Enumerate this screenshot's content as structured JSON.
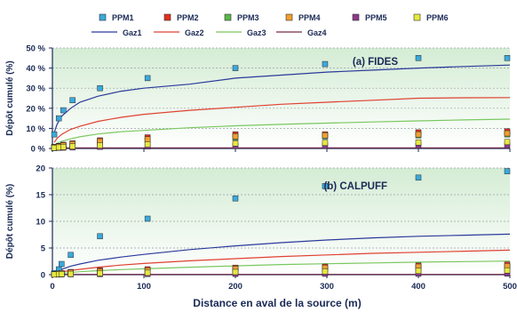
{
  "legend": {
    "markers": [
      {
        "label": "PPM1",
        "color": "#3aa9dc"
      },
      {
        "label": "PPM2",
        "color": "#e0301e"
      },
      {
        "label": "PPM3",
        "color": "#58b848"
      },
      {
        "label": "PPM4",
        "color": "#f0a030"
      },
      {
        "label": "PPM5",
        "color": "#8a3a8a"
      },
      {
        "label": "PPM6",
        "color": "#e8e840"
      }
    ],
    "lines": [
      {
        "label": "Gaz1",
        "color": "#2a3a9a"
      },
      {
        "label": "Gaz2",
        "color": "#e04030"
      },
      {
        "label": "Gaz3",
        "color": "#7ac860"
      },
      {
        "label": "Gaz4",
        "color": "#7a2a4a"
      }
    ]
  },
  "colors": {
    "plot_bg_top": "#d4ecd4",
    "plot_bg_bottom": "#ffffff",
    "axis": "#1a2a55"
  },
  "xlabel": "Distance en aval de la source (m)",
  "chart_data": [
    {
      "type": "scatter",
      "title": "(a) FIDES",
      "ylabel": "Dépôt cumulé (%)",
      "xlim": [
        0,
        500
      ],
      "ylim": [
        0,
        50
      ],
      "yticks": [
        "0 %",
        "10 %",
        "20 %",
        "30 %",
        "40 %",
        "50 %"
      ],
      "ytick_values": [
        0,
        10,
        20,
        30,
        40,
        50
      ],
      "xticks": [],
      "grid": true,
      "scatter_series": [
        {
          "name": "PPM1",
          "points": [
            [
              2,
              7
            ],
            [
              7,
              15
            ],
            [
              12,
              19
            ],
            [
              22,
              24
            ],
            [
              52,
              30
            ],
            [
              104,
              35
            ],
            [
              200,
              40
            ],
            [
              298,
              42
            ],
            [
              400,
              45
            ],
            [
              500,
              45
            ]
          ]
        },
        {
          "name": "PPM2",
          "points": [
            [
              2,
              0.8
            ],
            [
              7,
              1.2
            ],
            [
              12,
              1.8
            ],
            [
              22,
              2.5
            ],
            [
              52,
              4
            ],
            [
              104,
              5.5
            ],
            [
              200,
              7
            ],
            [
              298,
              7
            ],
            [
              400,
              8
            ],
            [
              500,
              8.5
            ]
          ]
        },
        {
          "name": "PPM3",
          "points": [
            [
              2,
              0.5
            ],
            [
              7,
              0.8
            ],
            [
              12,
              1.2
            ],
            [
              22,
              1.8
            ],
            [
              52,
              3
            ],
            [
              104,
              4
            ],
            [
              200,
              5.5
            ],
            [
              298,
              6
            ],
            [
              400,
              6.5
            ],
            [
              500,
              7
            ]
          ]
        },
        {
          "name": "PPM4",
          "points": [
            [
              2,
              0.6
            ],
            [
              7,
              1
            ],
            [
              12,
              1.5
            ],
            [
              22,
              2.2
            ],
            [
              52,
              3.5
            ],
            [
              104,
              4.5
            ],
            [
              200,
              6
            ],
            [
              298,
              6.5
            ],
            [
              400,
              7
            ],
            [
              500,
              7.5
            ]
          ]
        },
        {
          "name": "PPM5",
          "points": [
            [
              2,
              0.2
            ],
            [
              7,
              0.3
            ],
            [
              12,
              0.4
            ],
            [
              22,
              0.5
            ],
            [
              52,
              0.8
            ],
            [
              104,
              1
            ],
            [
              200,
              1.2
            ],
            [
              298,
              1.3
            ],
            [
              400,
              1.4
            ],
            [
              500,
              1.5
            ]
          ]
        },
        {
          "name": "PPM6",
          "points": [
            [
              2,
              0.3
            ],
            [
              7,
              0.5
            ],
            [
              12,
              0.7
            ],
            [
              22,
              1
            ],
            [
              52,
              1.5
            ],
            [
              104,
              2
            ],
            [
              200,
              2.5
            ],
            [
              298,
              2.8
            ],
            [
              400,
              3
            ],
            [
              500,
              3.2
            ]
          ]
        }
      ],
      "line_series": [
        {
          "name": "Gaz1",
          "x": [
            2,
            5,
            10,
            20,
            30,
            50,
            75,
            100,
            150,
            200,
            250,
            300,
            350,
            400,
            450,
            500
          ],
          "y": [
            8,
            12,
            16,
            20,
            23,
            26,
            28.5,
            30,
            32,
            35,
            36.5,
            38,
            39,
            40,
            40.8,
            41.5
          ]
        },
        {
          "name": "Gaz2",
          "x": [
            2,
            5,
            10,
            20,
            30,
            50,
            75,
            100,
            150,
            200,
            250,
            300,
            350,
            400,
            450,
            500
          ],
          "y": [
            3,
            5,
            7,
            9.5,
            11,
            13.5,
            15.5,
            17,
            19,
            20.5,
            22,
            23,
            24,
            25,
            25.2,
            25.3
          ]
        },
        {
          "name": "Gaz3",
          "x": [
            2,
            5,
            10,
            20,
            30,
            50,
            75,
            100,
            150,
            200,
            250,
            300,
            350,
            400,
            450,
            500
          ],
          "y": [
            1.5,
            2.5,
            3.5,
            4.8,
            5.8,
            7.2,
            8.3,
            9,
            10.3,
            11.3,
            12,
            12.6,
            13.2,
            13.7,
            14.2,
            14.6
          ]
        },
        {
          "name": "Gaz4",
          "x": [
            0,
            500
          ],
          "y": [
            0.3,
            0.3
          ]
        }
      ]
    },
    {
      "type": "scatter",
      "title": "(b) CALPUFF",
      "ylabel": "Dépôt cumulé (%)",
      "xlim": [
        0,
        500
      ],
      "ylim": [
        0,
        20
      ],
      "yticks": [
        "0",
        "5",
        "10",
        "15",
        "20"
      ],
      "ytick_values": [
        0,
        5,
        10,
        15,
        20
      ],
      "xticks": [
        "0",
        "100",
        "200",
        "300",
        "400",
        "500"
      ],
      "xtick_values": [
        0,
        100,
        200,
        300,
        400,
        500
      ],
      "grid": true,
      "scatter_series": [
        {
          "name": "PPM1",
          "points": [
            [
              2,
              0.3
            ],
            [
              7,
              1
            ],
            [
              10,
              2
            ],
            [
              20,
              3.7
            ],
            [
              52,
              7.2
            ],
            [
              104,
              10.5
            ],
            [
              200,
              14.3
            ],
            [
              298,
              16.6
            ],
            [
              400,
              18.2
            ],
            [
              500,
              19.4
            ]
          ]
        },
        {
          "name": "PPM2",
          "points": [
            [
              2,
              0.1
            ],
            [
              7,
              0.2
            ],
            [
              10,
              0.3
            ],
            [
              20,
              0.5
            ],
            [
              52,
              0.8
            ],
            [
              104,
              1
            ],
            [
              200,
              1.3
            ],
            [
              298,
              1.5
            ],
            [
              400,
              1.7
            ],
            [
              500,
              1.9
            ]
          ]
        },
        {
          "name": "PPM3",
          "points": [
            [
              2,
              0.05
            ],
            [
              7,
              0.1
            ],
            [
              10,
              0.2
            ],
            [
              20,
              0.3
            ],
            [
              52,
              0.5
            ],
            [
              104,
              0.7
            ],
            [
              200,
              0.9
            ],
            [
              298,
              1.1
            ],
            [
              400,
              1.3
            ],
            [
              500,
              1.4
            ]
          ]
        },
        {
          "name": "PPM4",
          "points": [
            [
              2,
              0.08
            ],
            [
              7,
              0.15
            ],
            [
              10,
              0.25
            ],
            [
              20,
              0.4
            ],
            [
              52,
              0.6
            ],
            [
              104,
              0.8
            ],
            [
              200,
              1.1
            ],
            [
              298,
              1.3
            ],
            [
              400,
              1.5
            ],
            [
              500,
              1.6
            ]
          ]
        },
        {
          "name": "PPM5",
          "points": [
            [
              2,
              0.02
            ],
            [
              7,
              0.03
            ],
            [
              10,
              0.05
            ],
            [
              20,
              0.08
            ],
            [
              52,
              0.1
            ],
            [
              104,
              0.12
            ],
            [
              200,
              0.15
            ],
            [
              298,
              0.17
            ],
            [
              400,
              0.18
            ],
            [
              500,
              0.2
            ]
          ]
        },
        {
          "name": "PPM6",
          "points": [
            [
              2,
              0.04
            ],
            [
              7,
              0.08
            ],
            [
              10,
              0.1
            ],
            [
              20,
              0.15
            ],
            [
              52,
              0.25
            ],
            [
              104,
              0.35
            ],
            [
              200,
              0.5
            ],
            [
              298,
              0.6
            ],
            [
              400,
              0.7
            ],
            [
              500,
              0.8
            ]
          ]
        }
      ],
      "line_series": [
        {
          "name": "Gaz1",
          "x": [
            0,
            5,
            10,
            20,
            30,
            50,
            75,
            100,
            150,
            200,
            250,
            300,
            350,
            400,
            450,
            500
          ],
          "y": [
            0.2,
            0.6,
            1,
            1.6,
            2,
            2.7,
            3.3,
            3.8,
            4.7,
            5.4,
            6,
            6.5,
            6.9,
            7.2,
            7.4,
            7.6
          ]
        },
        {
          "name": "Gaz2",
          "x": [
            0,
            5,
            10,
            20,
            30,
            50,
            75,
            100,
            150,
            200,
            250,
            300,
            350,
            400,
            450,
            500
          ],
          "y": [
            0.1,
            0.3,
            0.5,
            0.8,
            1,
            1.4,
            1.8,
            2.1,
            2.6,
            3,
            3.4,
            3.7,
            4,
            4.2,
            4.4,
            4.6
          ]
        },
        {
          "name": "Gaz3",
          "x": [
            0,
            5,
            10,
            20,
            30,
            50,
            75,
            100,
            150,
            200,
            250,
            300,
            350,
            400,
            450,
            500
          ],
          "y": [
            0.05,
            0.15,
            0.25,
            0.4,
            0.55,
            0.75,
            0.95,
            1.1,
            1.4,
            1.65,
            1.9,
            2.05,
            2.2,
            2.35,
            2.45,
            2.55
          ]
        },
        {
          "name": "Gaz4",
          "x": [
            0,
            500
          ],
          "y": [
            0.05,
            0.05
          ]
        }
      ]
    }
  ]
}
